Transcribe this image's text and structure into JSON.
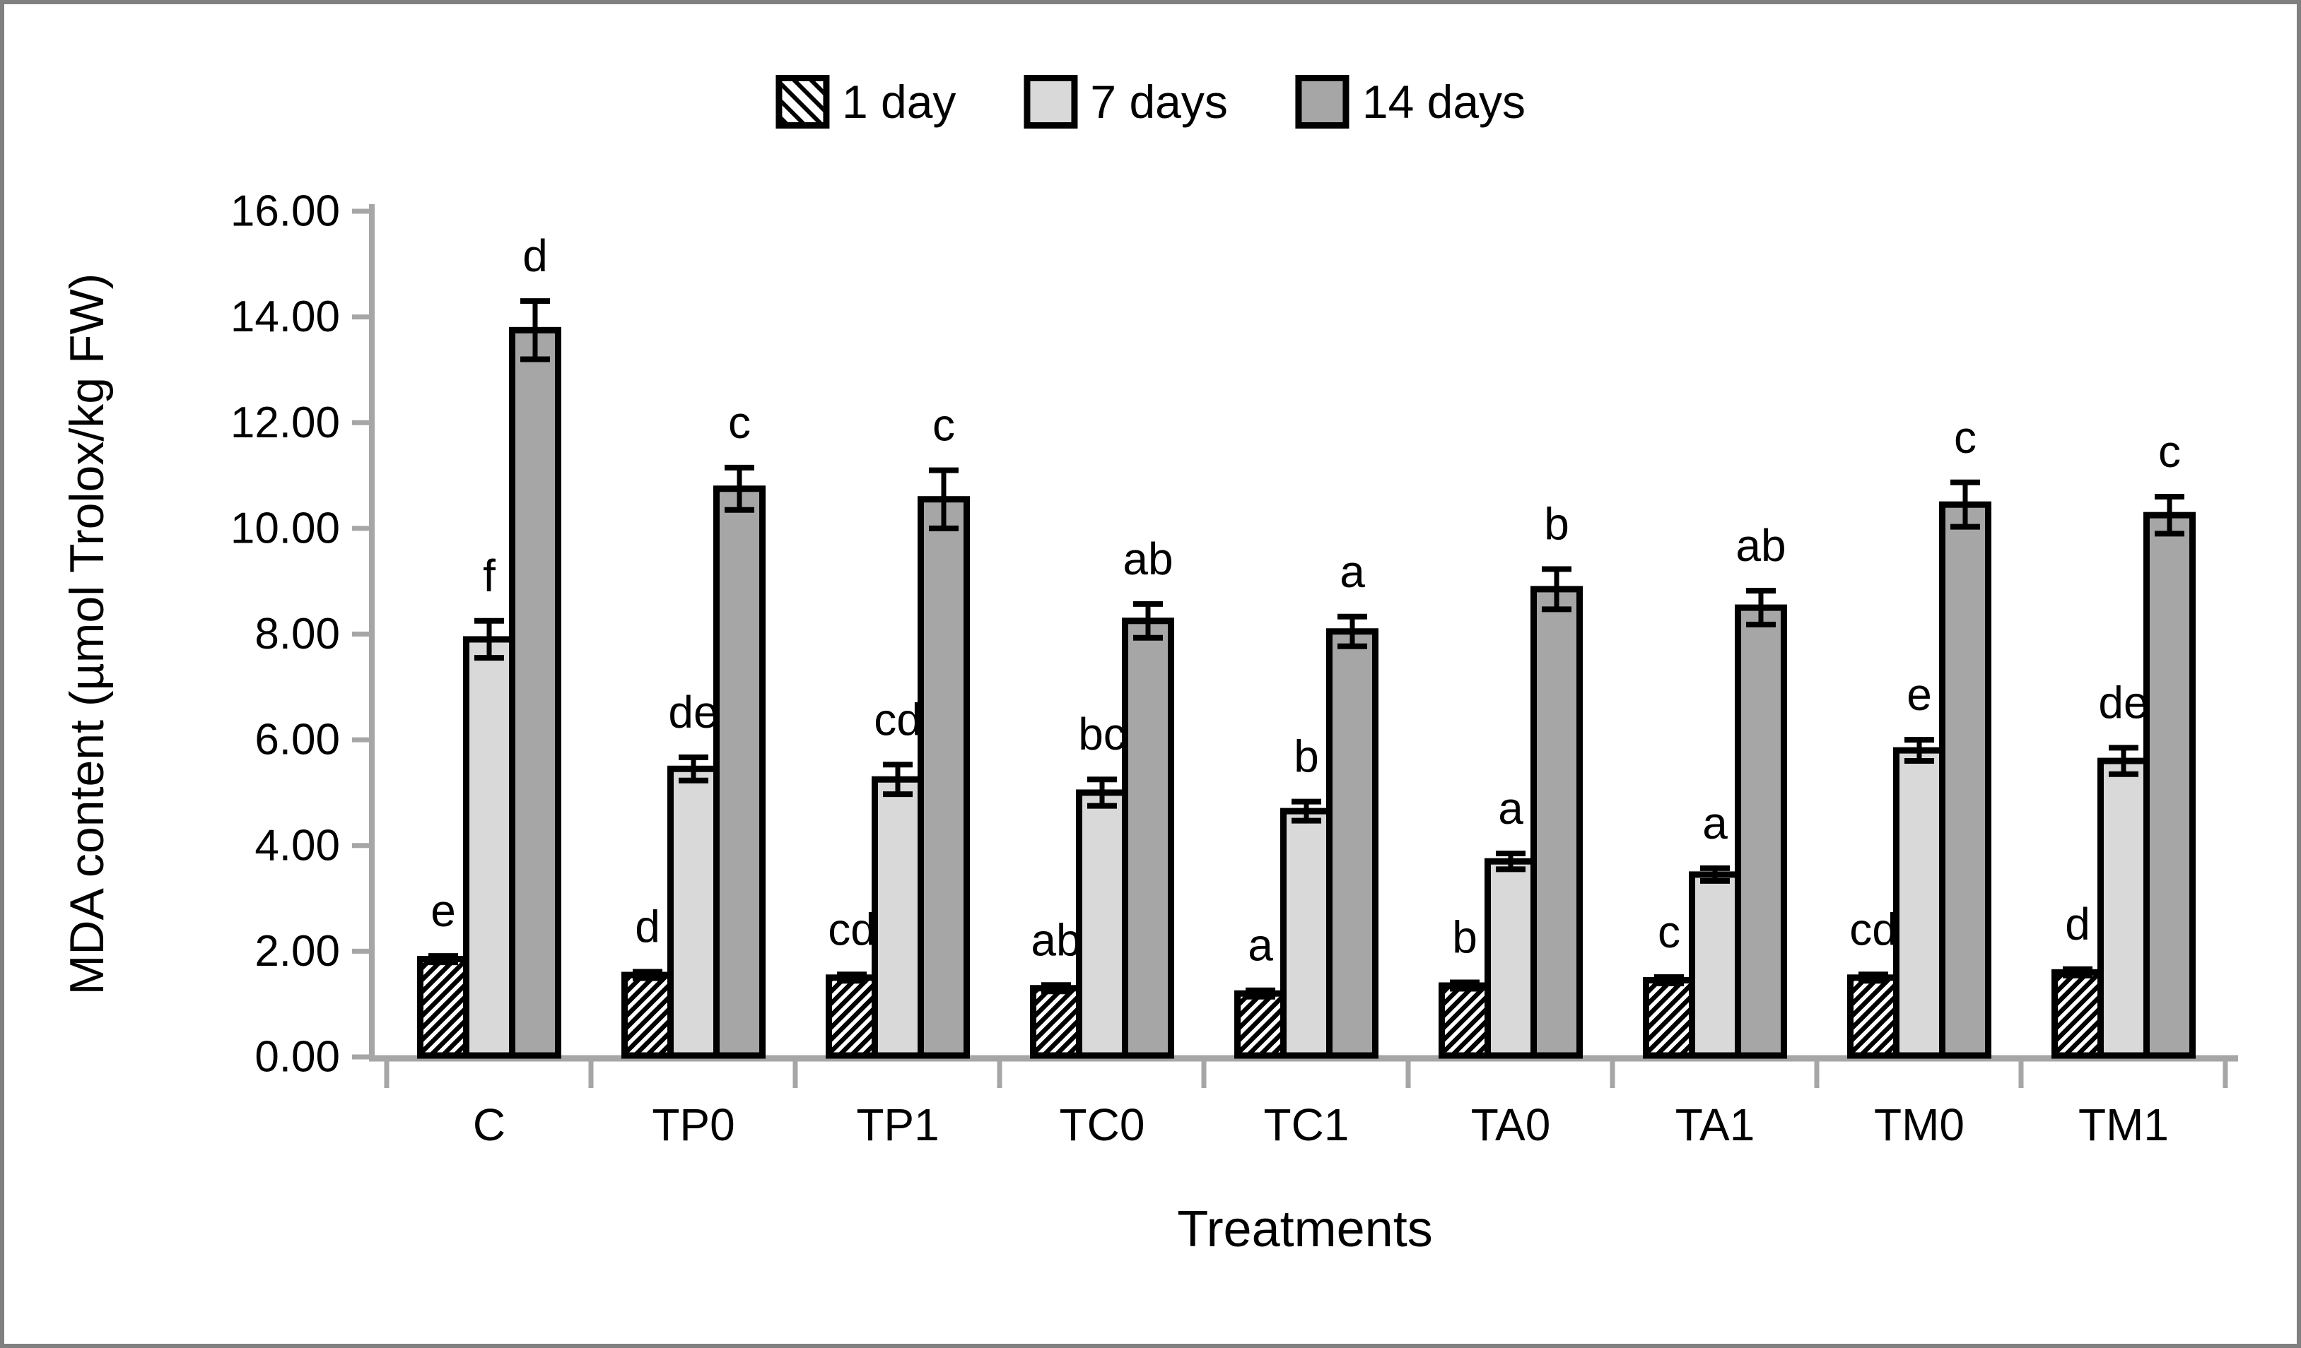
{
  "figure": {
    "background": "#ffffff",
    "frame_color": "#808080",
    "axis_color": "#a6a6a6",
    "bar_border_color": "#000000",
    "error_bar_color": "#000000"
  },
  "legend": {
    "items": [
      {
        "label": "1 day",
        "swatch": "hatched",
        "fill": "#ffffff"
      },
      {
        "label": "7 days",
        "swatch": "solid",
        "fill": "#d9d9d9"
      },
      {
        "label": "14 days",
        "swatch": "solid",
        "fill": "#a6a6a6"
      }
    ]
  },
  "chart_data": {
    "type": "bar",
    "title": "",
    "xlabel": "Treatments",
    "ylabel": "MDA content (µmol Trolox/kg FW)",
    "ylim": [
      0,
      16
    ],
    "ytick_step": 2,
    "ytick_labels": [
      "0.00",
      "2.00",
      "4.00",
      "6.00",
      "8.00",
      "10.00",
      "12.00",
      "14.00",
      "16.00"
    ],
    "grid": false,
    "legend_position": "top-center",
    "error_bars": true,
    "categories": [
      "C",
      "TP0",
      "TP1",
      "TC0",
      "TC1",
      "TA0",
      "TA1",
      "TM0",
      "TM1"
    ],
    "series": [
      {
        "name": "1 day",
        "style": "hatched",
        "fill": "#ffffff",
        "values": [
          1.85,
          1.55,
          1.5,
          1.3,
          1.2,
          1.35,
          1.45,
          1.5,
          1.6
        ],
        "errors": [
          0.06,
          0.06,
          0.06,
          0.06,
          0.06,
          0.06,
          0.06,
          0.06,
          0.06
        ],
        "letters": [
          "e",
          "d",
          "cd",
          "ab",
          "a",
          "b",
          "c",
          "cd",
          "d"
        ]
      },
      {
        "name": "7 days",
        "style": "solid",
        "fill": "#d9d9d9",
        "values": [
          7.9,
          5.45,
          5.25,
          5.0,
          4.65,
          3.7,
          3.45,
          5.8,
          5.6
        ],
        "errors": [
          0.35,
          0.22,
          0.28,
          0.25,
          0.18,
          0.15,
          0.12,
          0.2,
          0.25
        ],
        "letters": [
          "f",
          "de",
          "cd",
          "bc",
          "b",
          "a",
          "a",
          "e",
          "de"
        ]
      },
      {
        "name": "14 days",
        "style": "solid",
        "fill": "#a6a6a6",
        "values": [
          13.75,
          10.75,
          10.55,
          8.25,
          8.05,
          8.85,
          8.5,
          10.45,
          10.25
        ],
        "errors": [
          0.55,
          0.4,
          0.55,
          0.32,
          0.28,
          0.38,
          0.32,
          0.42,
          0.35
        ],
        "letters": [
          "d",
          "c",
          "c",
          "ab",
          "a",
          "b",
          "ab",
          "c",
          "c"
        ]
      }
    ]
  }
}
